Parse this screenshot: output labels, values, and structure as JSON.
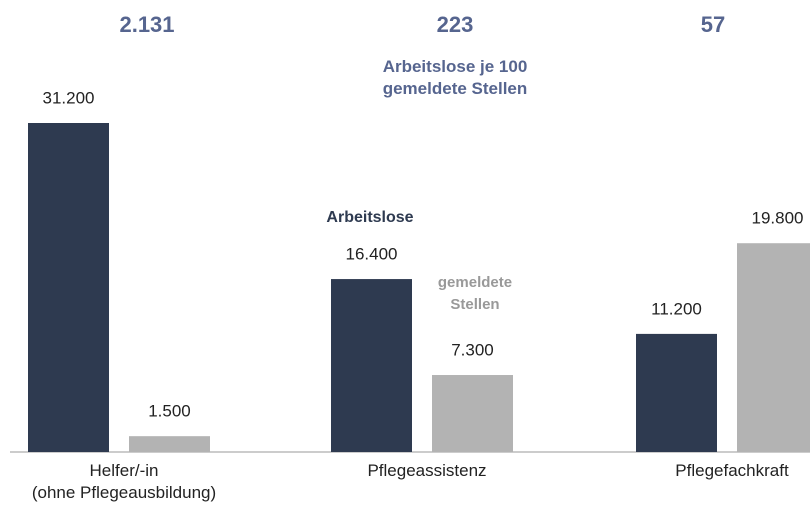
{
  "chart_data": {
    "type": "bar",
    "categories": [
      [
        "Helfer/-in",
        "(ohne Pflegeausbildung)"
      ],
      [
        "Pflegeassistenz"
      ],
      [
        "Pflegefachkraft"
      ]
    ],
    "series": [
      {
        "name": "Arbeitslose",
        "color": "#2e3a50",
        "values": [
          31200,
          16400,
          11200
        ],
        "value_labels": [
          "31.200",
          "16.400",
          "11.200"
        ]
      },
      {
        "name": "gemeldete Stellen",
        "color": "#b3b3b3",
        "values": [
          1500,
          7300,
          19800
        ],
        "value_labels": [
          "1.500",
          "7.300",
          "19.800"
        ]
      }
    ],
    "ratios": [
      2131,
      223,
      57
    ],
    "ratio_labels": [
      "2.131",
      "223",
      "57"
    ],
    "ratio_annotation": "Arbeitslose je 100 gemeldete Stellen"
  }
}
